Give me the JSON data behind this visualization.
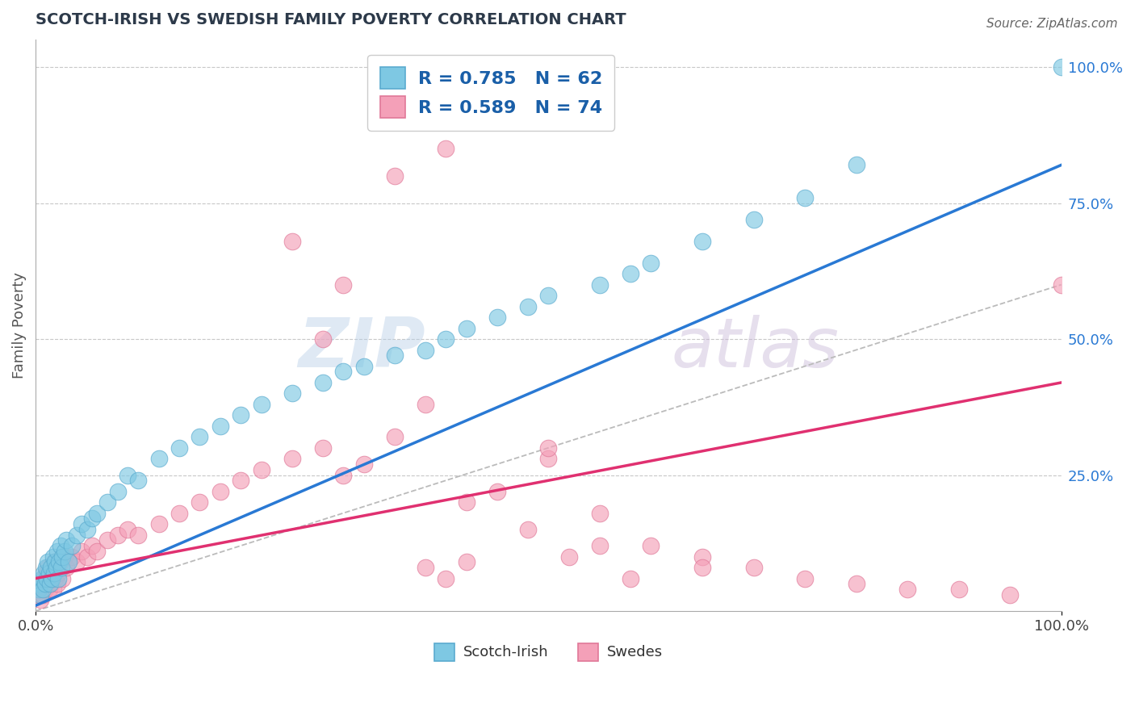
{
  "title": "SCOTCH-IRISH VS SWEDISH FAMILY POVERTY CORRELATION CHART",
  "source_text": "Source: ZipAtlas.com",
  "ylabel": "Family Poverty",
  "watermark_zip": "ZIP",
  "watermark_atlas": "atlas",
  "legend_label_scotch": "Scotch-Irish",
  "legend_label_swedes": "Swedes",
  "blue_scatter_color": "#7ec8e3",
  "pink_scatter_color": "#f4a0b8",
  "blue_edge_color": "#5aabcf",
  "pink_edge_color": "#e07898",
  "blue_line_color": "#2979d4",
  "pink_line_color": "#e03070",
  "title_color": "#2d3a4a",
  "source_color": "#666666",
  "axis_label_color": "#555555",
  "tick_color_right": "#2979d4",
  "grid_color": "#c8c8c8",
  "watermark_color_zip": "#b8cfe8",
  "watermark_color_atlas": "#c8b8d8",
  "R_N_color": "#1a5fa8",
  "ref_line_color": "#bbbbbb",
  "legend_box_blue_label": "R = 0.785   N = 62",
  "legend_box_pink_label": "R = 0.589   N = 74",
  "scotch_irish_x": [
    0.3,
    0.4,
    0.5,
    0.6,
    0.7,
    0.8,
    0.9,
    1.0,
    1.1,
    1.2,
    1.3,
    1.4,
    1.5,
    1.6,
    1.7,
    1.8,
    1.9,
    2.0,
    2.1,
    2.2,
    2.3,
    2.4,
    2.5,
    2.6,
    2.8,
    3.0,
    3.2,
    3.5,
    4.0,
    4.5,
    5.0,
    5.5,
    6.0,
    7.0,
    8.0,
    9.0,
    10.0,
    12.0,
    14.0,
    16.0,
    18.0,
    20.0,
    22.0,
    25.0,
    28.0,
    30.0,
    32.0,
    35.0,
    38.0,
    40.0,
    42.0,
    45.0,
    48.0,
    50.0,
    55.0,
    58.0,
    60.0,
    65.0,
    70.0,
    75.0,
    80.0,
    100.0
  ],
  "scotch_irish_y": [
    0.04,
    0.05,
    0.03,
    0.06,
    0.04,
    0.07,
    0.05,
    0.08,
    0.06,
    0.09,
    0.07,
    0.05,
    0.08,
    0.06,
    0.1,
    0.07,
    0.09,
    0.08,
    0.11,
    0.06,
    0.09,
    0.12,
    0.08,
    0.1,
    0.11,
    0.13,
    0.09,
    0.12,
    0.14,
    0.16,
    0.15,
    0.17,
    0.18,
    0.2,
    0.22,
    0.25,
    0.24,
    0.28,
    0.3,
    0.32,
    0.34,
    0.36,
    0.38,
    0.4,
    0.42,
    0.44,
    0.45,
    0.47,
    0.48,
    0.5,
    0.52,
    0.54,
    0.56,
    0.58,
    0.6,
    0.62,
    0.64,
    0.68,
    0.72,
    0.76,
    0.82,
    1.0
  ],
  "swedes_x": [
    0.3,
    0.4,
    0.5,
    0.6,
    0.7,
    0.8,
    0.9,
    1.0,
    1.1,
    1.2,
    1.3,
    1.4,
    1.5,
    1.6,
    1.7,
    1.8,
    1.9,
    2.0,
    2.1,
    2.2,
    2.4,
    2.6,
    2.8,
    3.0,
    3.5,
    4.0,
    4.5,
    5.0,
    5.5,
    6.0,
    7.0,
    8.0,
    9.0,
    10.0,
    12.0,
    14.0,
    16.0,
    18.0,
    20.0,
    22.0,
    25.0,
    28.0,
    30.0,
    32.0,
    35.0,
    38.0,
    40.0,
    42.0,
    45.0,
    50.0,
    35.0,
    40.0,
    45.0,
    50.0,
    55.0,
    30.0,
    55.0,
    60.0,
    65.0,
    70.0,
    75.0,
    80.0,
    85.0,
    90.0,
    95.0,
    100.0,
    25.0,
    28.0,
    38.0,
    42.0,
    48.0,
    52.0,
    58.0,
    65.0
  ],
  "swedes_y": [
    0.03,
    0.04,
    0.02,
    0.05,
    0.03,
    0.06,
    0.04,
    0.07,
    0.05,
    0.08,
    0.04,
    0.06,
    0.05,
    0.07,
    0.04,
    0.09,
    0.06,
    0.08,
    0.05,
    0.07,
    0.09,
    0.06,
    0.1,
    0.08,
    0.1,
    0.09,
    0.11,
    0.1,
    0.12,
    0.11,
    0.13,
    0.14,
    0.15,
    0.14,
    0.16,
    0.18,
    0.2,
    0.22,
    0.24,
    0.26,
    0.28,
    0.3,
    0.25,
    0.27,
    0.32,
    0.08,
    0.06,
    0.09,
    0.22,
    0.28,
    0.8,
    0.85,
    0.9,
    0.3,
    0.12,
    0.6,
    0.18,
    0.12,
    0.1,
    0.08,
    0.06,
    0.05,
    0.04,
    0.04,
    0.03,
    0.6,
    0.68,
    0.5,
    0.38,
    0.2,
    0.15,
    0.1,
    0.06,
    0.08
  ],
  "blue_trendline_x": [
    0,
    100
  ],
  "blue_trendline_y": [
    0.01,
    0.82
  ],
  "pink_trendline_x": [
    0,
    100
  ],
  "pink_trendline_y": [
    0.06,
    0.42
  ],
  "ref_line_x": [
    0,
    100
  ],
  "ref_line_y": [
    0.0,
    0.6
  ],
  "xlim": [
    0,
    100
  ],
  "ylim": [
    0,
    1.05
  ]
}
